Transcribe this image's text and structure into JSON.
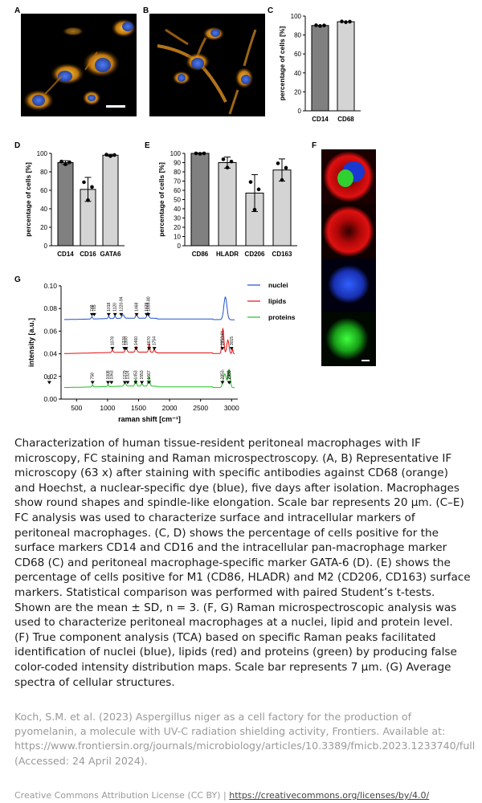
{
  "figure": {
    "labels": {
      "a": "A",
      "b": "B",
      "c": "C",
      "d": "D",
      "e": "E",
      "f": "F",
      "g": "G"
    },
    "colors": {
      "orange": "#f0a020",
      "blue": "#2050d0",
      "red": "#e01010",
      "green": "#20c020",
      "bar_dark": "#808080",
      "bar_light": "#d4d4d4"
    }
  },
  "chart_data": [
    {
      "panel": "C",
      "type": "bar",
      "categories": [
        "CD14",
        "CD68"
      ],
      "values": [
        90,
        94
      ],
      "ylabel": "percentage of cells [%]",
      "ylim": [
        0,
        100
      ],
      "yticks": [
        0,
        20,
        40,
        60,
        80,
        100
      ],
      "bar_colors": [
        "#808080",
        "#d4d4d4"
      ]
    },
    {
      "panel": "D",
      "type": "bar",
      "categories": [
        "CD14",
        "CD16",
        "GATA6"
      ],
      "values": [
        90,
        61,
        98
      ],
      "errors": [
        2,
        13,
        1
      ],
      "ylabel": "percentage of cells [%]",
      "ylim": [
        0,
        100
      ],
      "yticks": [
        0,
        20,
        40,
        60,
        80,
        100
      ],
      "bar_colors": [
        "#808080",
        "#d4d4d4",
        "#d4d4d4"
      ]
    },
    {
      "panel": "E",
      "type": "bar",
      "categories": [
        "CD86",
        "HLADR",
        "CD206",
        "CD163"
      ],
      "values": [
        100,
        90,
        57,
        82
      ],
      "errors": [
        0.5,
        6,
        20,
        12
      ],
      "ylabel": "percentage of cells [%]",
      "ylim": [
        0,
        100
      ],
      "yticks": [
        0,
        10,
        20,
        30,
        40,
        50,
        60,
        70,
        80,
        90,
        100
      ],
      "bar_colors": [
        "#808080",
        "#d4d4d4",
        "#d4d4d4",
        "#d4d4d4"
      ]
    },
    {
      "panel": "G",
      "type": "line",
      "xlabel": "raman shift [cm⁻¹]",
      "ylabel": "intensity [a.u.]",
      "xlim": [
        250,
        3100
      ],
      "ylim": [
        0,
        0.1
      ],
      "xticks": [
        500,
        1000,
        1500,
        2000,
        2500,
        3000
      ],
      "yticks": [
        "0.00",
        "0.02",
        "0.04",
        "0.06",
        "0.08",
        "0.10"
      ],
      "legend_position": "right",
      "series": [
        {
          "name": "nuclei",
          "color": "#2050d0",
          "baseline": 0.07,
          "peak_labels": [
            "748",
            "785",
            "1018",
            "1120",
            "1220-94",
            "1468",
            "1629",
            "1659-80"
          ]
        },
        {
          "name": "lipids",
          "color": "#e01010",
          "baseline": 0.04,
          "peak_labels": [
            "1078",
            "1270",
            "1300",
            "1460",
            "1670",
            "1754",
            "2853-61",
            "3015"
          ]
        },
        {
          "name": "proteins",
          "color": "#20c020",
          "baseline": 0.01,
          "peak_labels": [
            "758",
            "1008",
            "1063",
            "1279",
            "1324",
            "1453",
            "1553",
            "1667",
            "2853-",
            "61",
            "2960",
            "2965"
          ]
        }
      ]
    }
  ],
  "caption": "Characterization of human tissue-resident peritoneal macrophages with IF microscopy, FC staining and Raman microspectroscopy. (A, B) Representative IF microscopy (63 x) after staining with specific antibodies against CD68 (orange) and Hoechst, a nuclear-specific dye (blue), five days after isolation. Macrophages show round shapes and spindle-like elongation. Scale bar represents 20 µm. (C–E) FC analysis was used to characterize surface and intracellular markers of peritoneal macrophages. (C, D) shows the percentage of cells positive for the surface markers CD14 and CD16 and the intracellular pan-macrophage marker CD68 (C) and peritoneal macrophage-specific marker GATA-6 (D). (E) shows the percentage of cells positive for M1 (CD86, HLADR) and M2 (CD206, CD163) surface markers. Statistical comparison was performed with paired Student’s t-tests. Shown are the mean ± SD, n = 3. (F, G) Raman microspectroscopic analysis was used to characterize peritoneal macrophages at a nuclei, lipid and protein level. (F) True component analysis (TCA) based on specific Raman peaks facilitated identification of nuclei (blue), lipids (red) and proteins (green) by producing false color-coded intensity distribution maps. Scale bar represents 7 µm. (G) Average spectra of cellular structures.",
  "reference": {
    "text": "Koch, S.M. et al. (2023) Aspergillus niger as a cell factory for the production of pyomelanin, a molecule with UV-C radiation shielding activity, Frontiers. Available at: https://www.frontiersin.org/journals/microbiology/articles/10.3389/fmicb.2023.1233740/full (Accessed: 24 April 2024)."
  },
  "license": {
    "text": "Creative Commons Attribution License (CC BY) | ",
    "link": "https://creativecommons.org/licenses/by/4.0/"
  }
}
